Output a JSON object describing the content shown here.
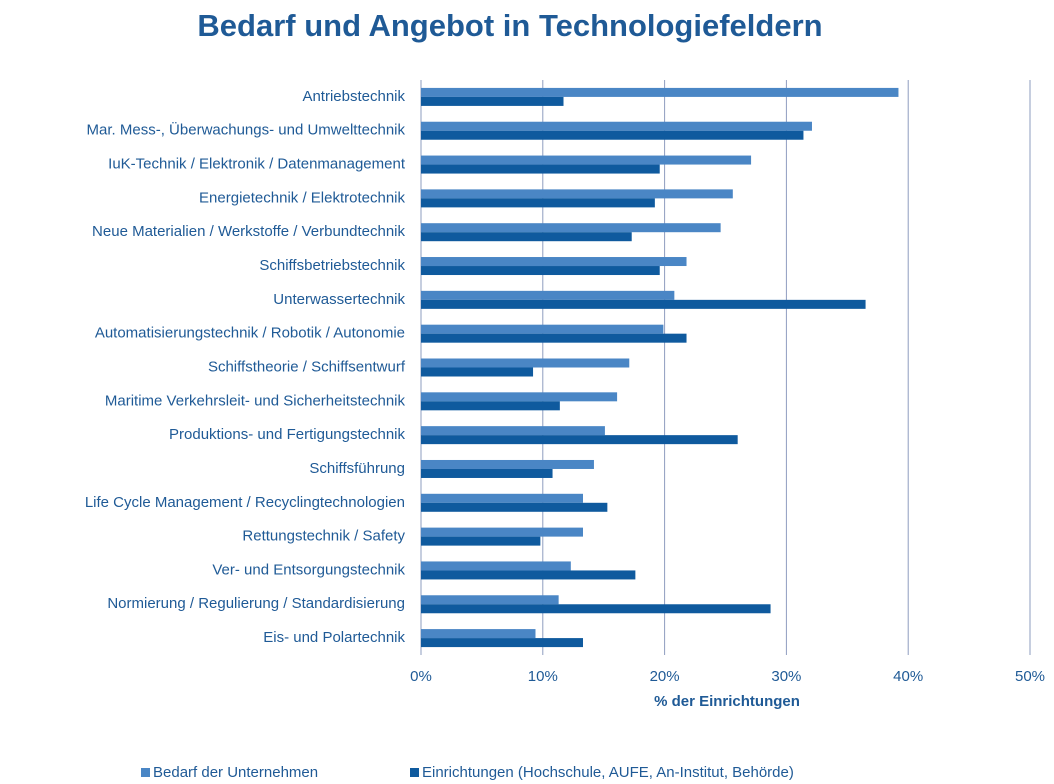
{
  "chart_data": {
    "type": "hbar",
    "title": "Bedarf und Angebot in Technologiefeldern",
    "xlabel": "% der Einrichtungen",
    "categories": [
      "Antriebstechnik",
      "Mar. Mess-, Überwachungs- und Umwelttechnik",
      "IuK-Technik / Elektronik / Datenmanagement",
      "Energietechnik / Elektrotechnik",
      "Neue Materialien / Werkstoffe / Verbundtechnik",
      "Schiffsbetriebstechnik",
      "Unterwassertechnik",
      "Automatisierungstechnik / Robotik / Autonomie",
      "Schiffstheorie / Schiffsentwurf",
      "Maritime Verkehrsleit- und Sicherheitstechnik",
      "Produktions- und Fertigungstechnik",
      "Schiffsführung",
      "Life Cycle Management / Recyclingtechnologien",
      "Rettungstechnik / Safety",
      "Ver- und Entsorgungstechnik",
      "Normierung / Regulierung / Standardisierung",
      "Eis- und Polartechnik"
    ],
    "series": [
      {
        "name": "Bedarf der Unternehmen",
        "color": "#4a86c5",
        "values": [
          39.2,
          32.1,
          27.1,
          25.6,
          24.6,
          21.8,
          20.8,
          19.9,
          17.1,
          16.1,
          15.1,
          14.2,
          13.3,
          13.3,
          12.3,
          11.3,
          9.4
        ]
      },
      {
        "name": "Einrichtungen (Hochschule, AUFE, An-Institut, Behörde)",
        "color": "#0f5a9e",
        "values": [
          11.7,
          31.4,
          19.6,
          19.2,
          17.3,
          19.6,
          36.5,
          21.8,
          9.2,
          11.4,
          26.0,
          10.8,
          15.3,
          9.8,
          17.6,
          28.7,
          13.3
        ]
      }
    ],
    "xlim": [
      0,
      50
    ],
    "xticks": [
      {
        "value": 0,
        "label": "0%"
      },
      {
        "value": 10,
        "label": "10%"
      },
      {
        "value": 20,
        "label": "20%"
      },
      {
        "value": 30,
        "label": "30%"
      },
      {
        "value": 40,
        "label": "40%"
      },
      {
        "value": 50,
        "label": "50%"
      }
    ],
    "grid": true
  }
}
